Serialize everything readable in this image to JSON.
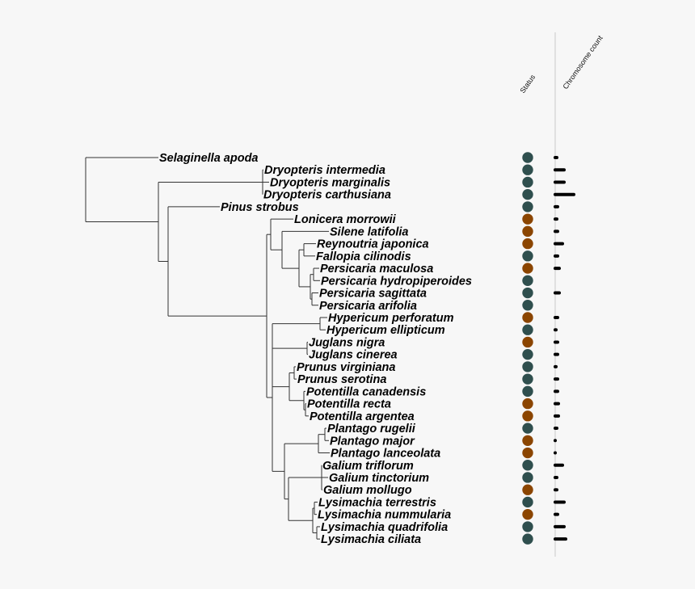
{
  "headers": {
    "status": "Status",
    "chromosome": "Chromosome count"
  },
  "colors": {
    "native": "#2f4f4e",
    "other": "#8b4500",
    "bar": "#000000",
    "divider": "#c8c8c8"
  },
  "taxa": [
    {
      "name": "Selaginella apoda",
      "status": "native",
      "chromosome": 6
    },
    {
      "name": "Dryopteris intermedia",
      "status": "native",
      "chromosome": 15
    },
    {
      "name": "Dryopteris marginalis",
      "status": "native",
      "chromosome": 15
    },
    {
      "name": "Dryopteris carthusiana",
      "status": "native",
      "chromosome": 27
    },
    {
      "name": "Pinus strobus",
      "status": "native",
      "chromosome": 7
    },
    {
      "name": "Lonicera morrowii",
      "status": "other",
      "chromosome": 6
    },
    {
      "name": "Silene latifolia",
      "status": "other",
      "chromosome": 7
    },
    {
      "name": "Reynoutria japonica",
      "status": "other",
      "chromosome": 13
    },
    {
      "name": "Fallopia cilinodis",
      "status": "native",
      "chromosome": 7
    },
    {
      "name": "Persicaria maculosa",
      "status": "other",
      "chromosome": 9
    },
    {
      "name": "Persicaria hydropiperoides",
      "status": "native",
      "chromosome": null
    },
    {
      "name": "Persicaria sagittata",
      "status": "native",
      "chromosome": 9
    },
    {
      "name": "Persicaria arifolia",
      "status": "native",
      "chromosome": null
    },
    {
      "name": "Hypericum perforatum",
      "status": "other",
      "chromosome": 7
    },
    {
      "name": "Hypericum ellipticum",
      "status": "native",
      "chromosome": 5
    },
    {
      "name": "Juglans nigra",
      "status": "other",
      "chromosome": 7
    },
    {
      "name": "Juglans cinerea",
      "status": "native",
      "chromosome": 7
    },
    {
      "name": "Prunus virginiana",
      "status": "native",
      "chromosome": 5
    },
    {
      "name": "Prunus serotina",
      "status": "native",
      "chromosome": 7
    },
    {
      "name": "Potentilla canadensis",
      "status": "native",
      "chromosome": 7
    },
    {
      "name": "Potentilla recta",
      "status": "other",
      "chromosome": 8
    },
    {
      "name": "Potentilla argentea",
      "status": "other",
      "chromosome": 8
    },
    {
      "name": "Plantago rugelii",
      "status": "native",
      "chromosome": 6
    },
    {
      "name": "Plantago major",
      "status": "other",
      "chromosome": 4
    },
    {
      "name": "Plantago lanceolata",
      "status": "other",
      "chromosome": 4
    },
    {
      "name": "Galium triflorum",
      "status": "native",
      "chromosome": 13
    },
    {
      "name": "Galium tinctorium",
      "status": "native",
      "chromosome": 6
    },
    {
      "name": "Galium mollugo",
      "status": "other",
      "chromosome": 6
    },
    {
      "name": "Lysimachia terrestris",
      "status": "native",
      "chromosome": 15
    },
    {
      "name": "Lysimachia nummularia",
      "status": "other",
      "chromosome": 7
    },
    {
      "name": "Lysimachia quadrifolia",
      "status": "native",
      "chromosome": 15
    },
    {
      "name": "Lysimachia ciliata",
      "status": "native",
      "chromosome": 17
    }
  ]
}
